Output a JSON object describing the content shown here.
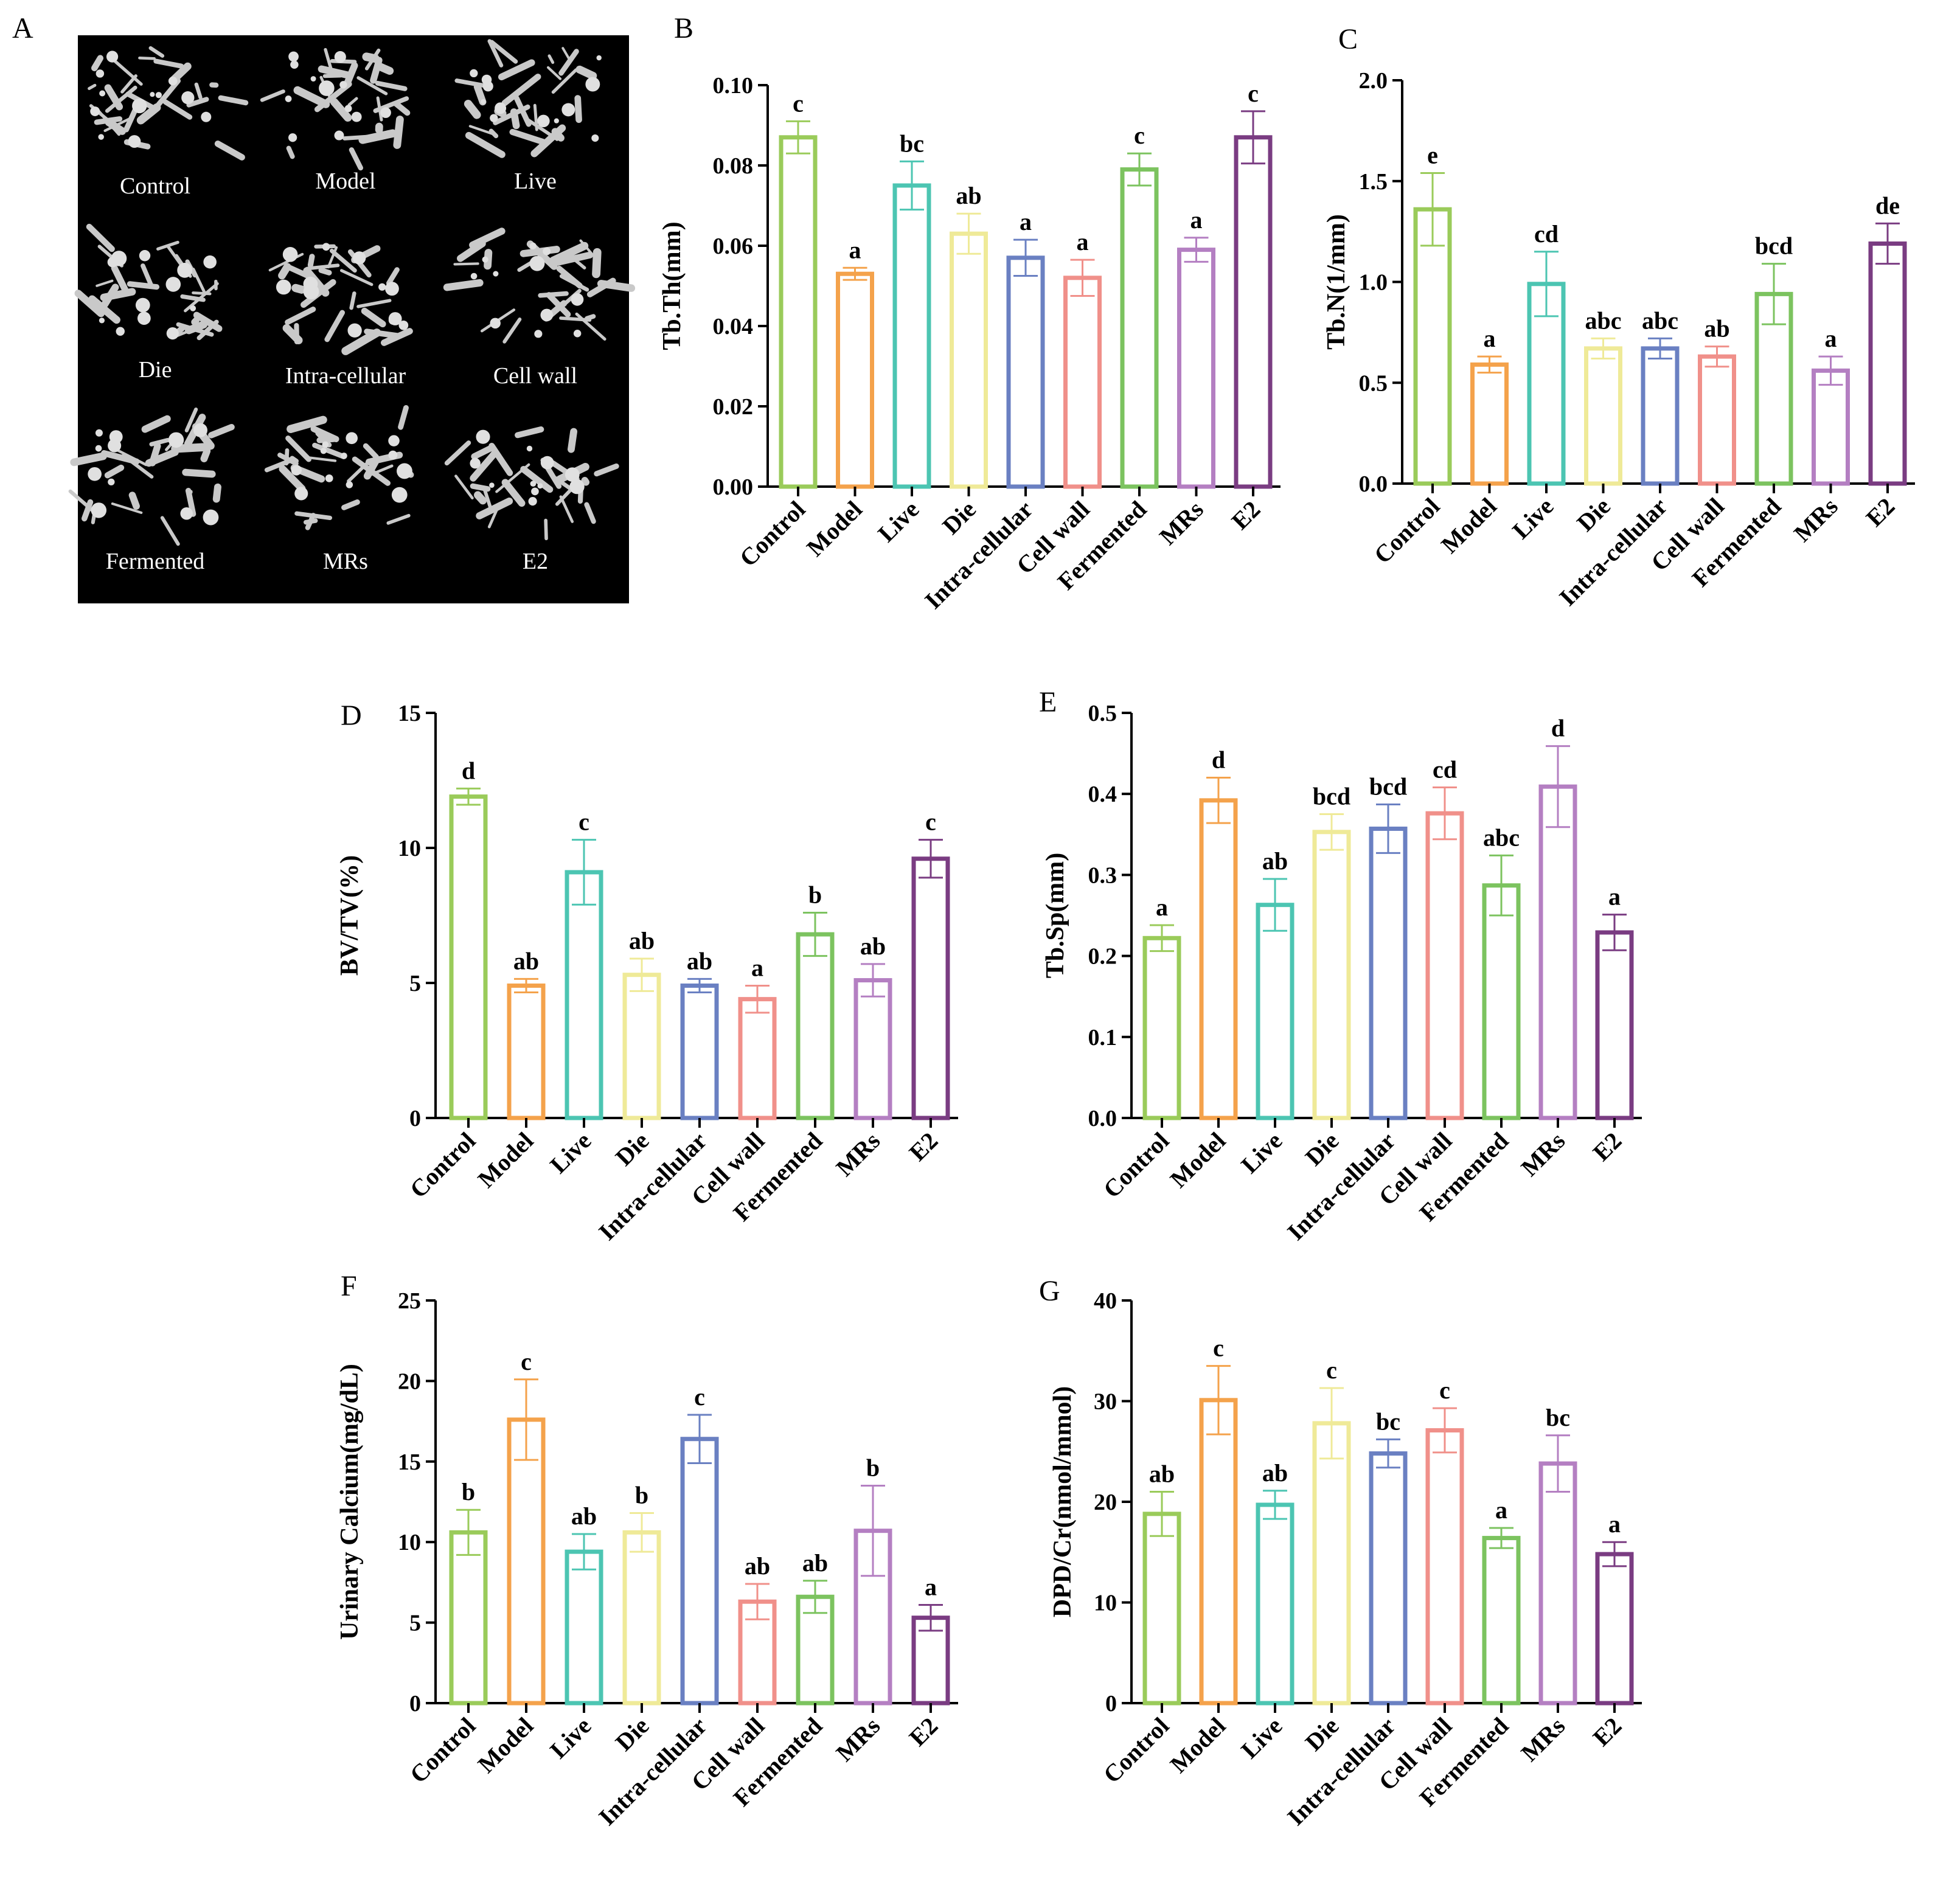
{
  "figure": {
    "panel_letters": [
      "A",
      "B",
      "C",
      "D",
      "E",
      "F",
      "G"
    ]
  },
  "microct": {
    "letter": "A",
    "labels": [
      "Control",
      "Model",
      "Live",
      "Die",
      "Intra-cellular",
      "Cell wall",
      "Fermented",
      "MRs",
      "E2"
    ]
  },
  "colors": {
    "Control": "#9ACB5A",
    "Model": "#F4A24B",
    "Live": "#4CC5B2",
    "Die": "#EFEA98",
    "Intra-cellular": "#6A80C2",
    "Cell wall": "#F0908A",
    "Fermented": "#7CC35F",
    "MRs": "#B47FC2",
    "E2": "#7A3C82"
  },
  "chart_data": [
    {
      "letter": "B",
      "type": "bar",
      "ylabel": "Tb.Th(mm)",
      "categories": [
        "Control",
        "Model",
        "Live",
        "Die",
        "Intra-cellular",
        "Cell wall",
        "Fermented",
        "MRs",
        "E2"
      ],
      "values": [
        0.087,
        0.053,
        0.075,
        0.063,
        0.057,
        0.052,
        0.079,
        0.059,
        0.087
      ],
      "errors": [
        0.004,
        0.0015,
        0.006,
        0.005,
        0.0045,
        0.0045,
        0.004,
        0.003,
        0.0065
      ],
      "sig": [
        "c",
        "a",
        "bc",
        "ab",
        "a",
        "a",
        "c",
        "a",
        "c"
      ],
      "ylim": [
        0,
        0.1
      ],
      "yticks": [
        "0.00",
        "0.02",
        "0.04",
        "0.06",
        "0.08",
        "0.10"
      ],
      "ytick_values": [
        0,
        0.02,
        0.04,
        0.06,
        0.08,
        0.1
      ]
    },
    {
      "letter": "C",
      "type": "bar",
      "ylabel": "Tb.N(1/mm)",
      "categories": [
        "Control",
        "Model",
        "Live",
        "Die",
        "Intra-cellular",
        "Cell wall",
        "Fermented",
        "MRs",
        "E2"
      ],
      "values": [
        1.36,
        0.59,
        0.99,
        0.67,
        0.67,
        0.63,
        0.94,
        0.56,
        1.19
      ],
      "errors": [
        0.18,
        0.04,
        0.16,
        0.05,
        0.05,
        0.05,
        0.15,
        0.07,
        0.1
      ],
      "sig": [
        "e",
        "a",
        "cd",
        "abc",
        "abc",
        "ab",
        "bcd",
        "a",
        "de"
      ],
      "ylim": [
        0,
        2.0
      ],
      "yticks": [
        "0.0",
        "0.5",
        "1.0",
        "1.5",
        "2.0"
      ],
      "ytick_values": [
        0,
        0.5,
        1.0,
        1.5,
        2.0
      ]
    },
    {
      "letter": "D",
      "type": "bar",
      "ylabel": "BV/TV(%)",
      "categories": [
        "Control",
        "Model",
        "Live",
        "Die",
        "Intra-cellular",
        "Cell wall",
        "Fermented",
        "MRs",
        "E2"
      ],
      "values": [
        11.9,
        4.9,
        9.1,
        5.3,
        4.9,
        4.4,
        6.8,
        5.1,
        9.6
      ],
      "errors": [
        0.3,
        0.25,
        1.2,
        0.6,
        0.25,
        0.5,
        0.8,
        0.6,
        0.7
      ],
      "sig": [
        "d",
        "ab",
        "c",
        "ab",
        "ab",
        "a",
        "b",
        "ab",
        "c"
      ],
      "ylim": [
        0,
        15
      ],
      "yticks": [
        "0",
        "5",
        "10",
        "15"
      ],
      "ytick_values": [
        0,
        5,
        10,
        15
      ]
    },
    {
      "letter": "E",
      "type": "bar",
      "ylabel": "Tb.Sp(mm)",
      "categories": [
        "Control",
        "Model",
        "Live",
        "Die",
        "Intra-cellular",
        "Cell wall",
        "Fermented",
        "MRs",
        "E2"
      ],
      "values": [
        0.222,
        0.392,
        0.263,
        0.353,
        0.357,
        0.376,
        0.287,
        0.409,
        0.229
      ],
      "errors": [
        0.016,
        0.028,
        0.032,
        0.022,
        0.03,
        0.032,
        0.037,
        0.05,
        0.022
      ],
      "sig": [
        "a",
        "d",
        "ab",
        "bcd",
        "bcd",
        "cd",
        "abc",
        "d",
        "a"
      ],
      "ylim": [
        0,
        0.5
      ],
      "yticks": [
        "0.0",
        "0.1",
        "0.2",
        "0.3",
        "0.4",
        "0.5"
      ],
      "ytick_values": [
        0,
        0.1,
        0.2,
        0.3,
        0.4,
        0.5
      ]
    },
    {
      "letter": "F",
      "type": "bar",
      "ylabel": "Urinary Calcium(mg/dL)",
      "categories": [
        "Control",
        "Model",
        "Live",
        "Die",
        "Intra-cellular",
        "Cell wall",
        "Fermented",
        "MRs",
        "E2"
      ],
      "values": [
        10.6,
        17.6,
        9.4,
        10.6,
        16.4,
        6.3,
        6.6,
        10.7,
        5.3
      ],
      "errors": [
        1.4,
        2.5,
        1.1,
        1.2,
        1.5,
        1.1,
        1.0,
        2.8,
        0.8
      ],
      "sig": [
        "b",
        "c",
        "ab",
        "b",
        "c",
        "ab",
        "ab",
        "b",
        "a"
      ],
      "ylim": [
        0,
        25
      ],
      "yticks": [
        "0",
        "5",
        "10",
        "15",
        "20",
        "25"
      ],
      "ytick_values": [
        0,
        5,
        10,
        15,
        20,
        25
      ]
    },
    {
      "letter": "G",
      "type": "bar",
      "ylabel": "DPD/Cr(nmol/mmol)",
      "categories": [
        "Control",
        "Model",
        "Live",
        "Die",
        "Intra-cellular",
        "Cell wall",
        "Fermented",
        "MRs",
        "E2"
      ],
      "values": [
        18.8,
        30.1,
        19.7,
        27.8,
        24.8,
        27.1,
        16.4,
        23.8,
        14.8
      ],
      "errors": [
        2.2,
        3.4,
        1.4,
        3.5,
        1.4,
        2.2,
        1.0,
        2.8,
        1.2
      ],
      "sig": [
        "ab",
        "c",
        "ab",
        "c",
        "bc",
        "c",
        "a",
        "bc",
        "a"
      ],
      "ylim": [
        0,
        40
      ],
      "yticks": [
        "0",
        "10",
        "20",
        "30",
        "40"
      ],
      "ytick_values": [
        0,
        10,
        20,
        30,
        40
      ]
    }
  ]
}
